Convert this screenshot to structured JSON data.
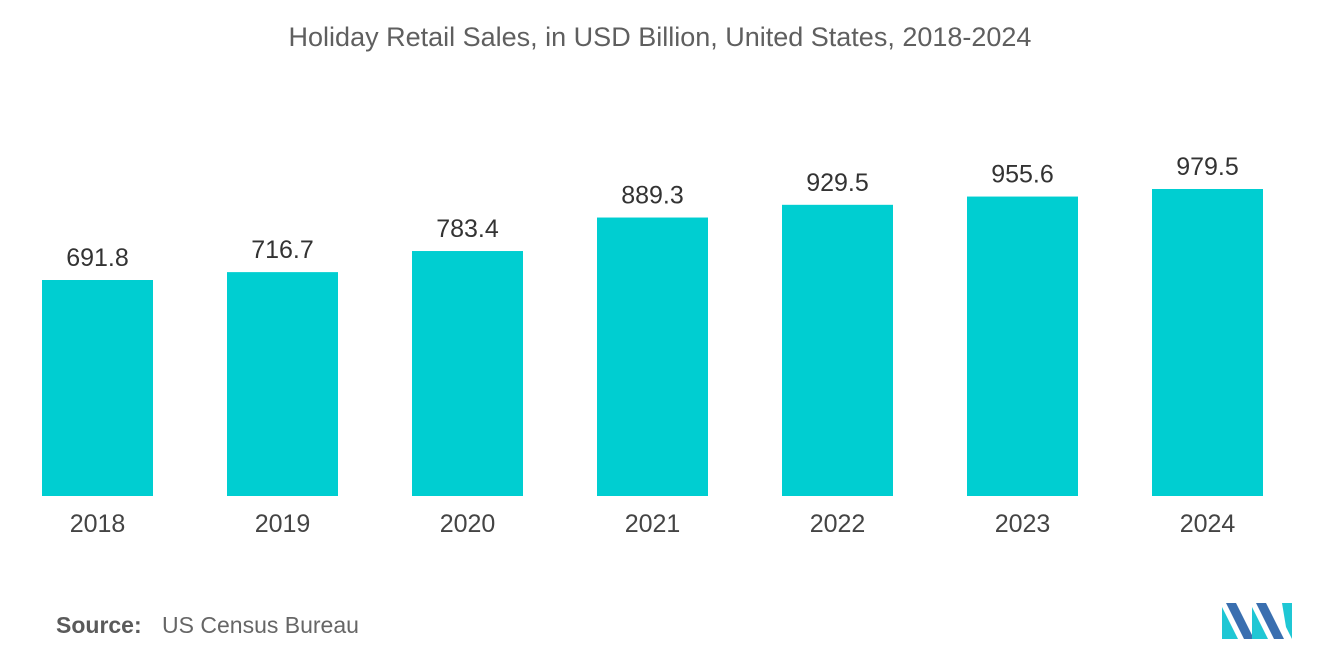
{
  "chart_data": {
    "type": "bar",
    "title": "Holiday Retail Sales, in USD Billion, United States, 2018-2024",
    "categories": [
      "2018",
      "2019",
      "2020",
      "2021",
      "2022",
      "2023",
      "2024"
    ],
    "values": [
      691.8,
      716.7,
      783.4,
      889.3,
      929.5,
      955.6,
      979.5
    ],
    "value_labels": [
      "691.8",
      "716.7",
      "783.4",
      "889.3",
      "929.5",
      "955.6",
      "979.5"
    ],
    "xlabel": "",
    "ylabel": "",
    "ylim": [
      0,
      1000
    ],
    "grid": false,
    "legend": "none",
    "bar_color": "#00CED1"
  },
  "footer": {
    "source_label": "Source:",
    "source_value": "US Census Bureau"
  },
  "logo": {
    "icon": "mordor-intelligence-logo-icon",
    "colors": [
      "#3a6fb0",
      "#1fc7d4"
    ]
  }
}
